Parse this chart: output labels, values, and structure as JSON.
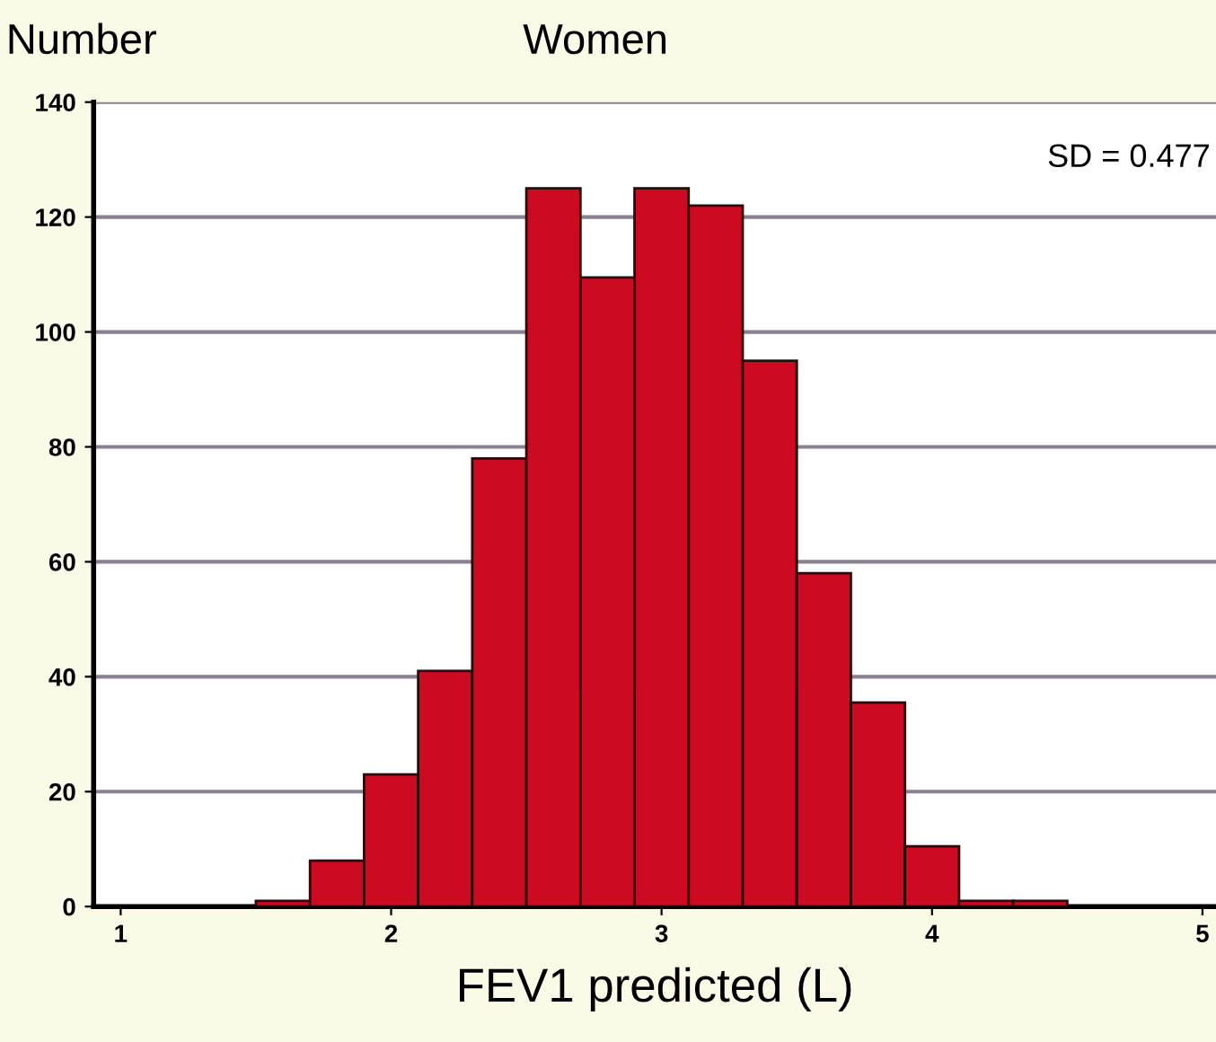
{
  "chart_data": {
    "type": "histogram",
    "title": "Women",
    "ylabel": "Number",
    "xlabel": "FEV1 predicted (L)",
    "bins": [
      1.5,
      1.7,
      1.9,
      2.1,
      2.3,
      2.5,
      2.7,
      2.9,
      3.1,
      3.3,
      3.5,
      3.7,
      3.9,
      4.1,
      4.3,
      4.5
    ],
    "values": [
      1,
      8,
      23,
      41,
      78,
      125,
      109.5,
      125,
      122,
      95,
      58,
      35.5,
      10.5,
      1,
      1
    ],
    "color": "#cc0a22",
    "xlim": [
      0.9,
      5.05
    ],
    "xticks": [
      1,
      2,
      3,
      4,
      5
    ],
    "ylim": [
      0,
      140
    ],
    "yticks": [
      0,
      20,
      40,
      60,
      80,
      100,
      120,
      140
    ],
    "grid": "y",
    "annotations": [
      "SD = 0.477"
    ]
  }
}
